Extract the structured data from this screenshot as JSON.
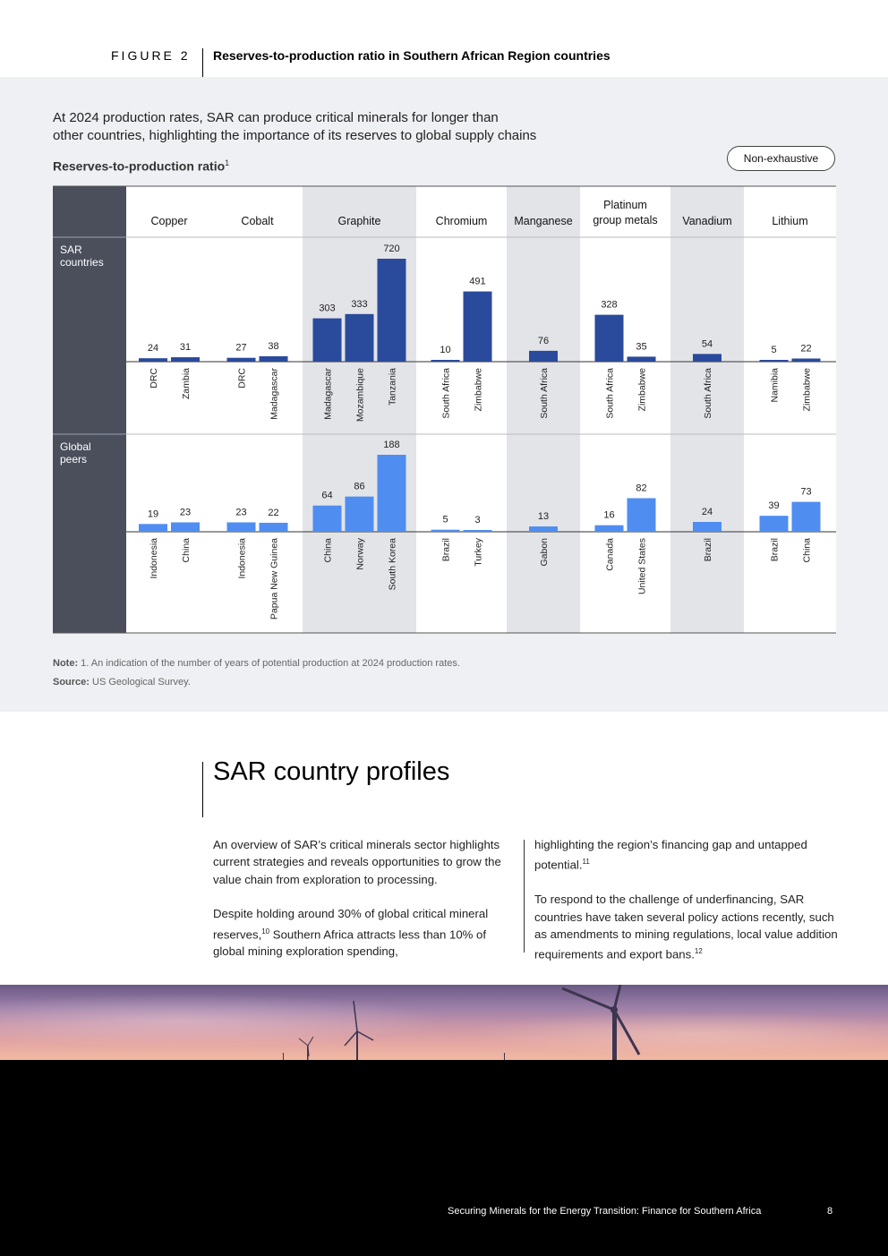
{
  "figure": {
    "label": "FIGURE 2",
    "title": "Reserves-to-production ratio in Southern African Region countries",
    "subtitle_line1": "At 2024 production rates, SAR can produce critical minerals for longer than",
    "subtitle_line2": "other countries, highlighting the importance of its reserves to global supply chains",
    "chart_label": "Reserves-to-production ratio",
    "chart_label_sup": "1",
    "badge": "Non-exhaustive"
  },
  "chart_data": {
    "type": "bar",
    "title": "Reserves-to-production ratio",
    "row_labels": [
      [
        "SAR",
        "countries"
      ],
      [
        "Global",
        "peers"
      ]
    ],
    "minerals": [
      {
        "name": [
          "Copper"
        ],
        "shaded": false,
        "sar": [
          {
            "country": "DRC",
            "value": 24
          },
          {
            "country": "Zambia",
            "value": 31
          }
        ],
        "global": [
          {
            "country": "Indonesia",
            "value": 19
          },
          {
            "country": "China",
            "value": 23
          }
        ]
      },
      {
        "name": [
          "Cobalt"
        ],
        "shaded": false,
        "sar": [
          {
            "country": "DRC",
            "value": 27
          },
          {
            "country": "Madagascar",
            "value": 38
          }
        ],
        "global": [
          {
            "country": "Indonesia",
            "value": 23
          },
          {
            "country": "Papua New Guinea",
            "value": 22
          }
        ]
      },
      {
        "name": [
          "Graphite"
        ],
        "shaded": true,
        "sar": [
          {
            "country": "Madagascar",
            "value": 303
          },
          {
            "country": "Mozambique",
            "value": 333
          },
          {
            "country": "Tanzania",
            "value": 720
          }
        ],
        "global": [
          {
            "country": "China",
            "value": 64
          },
          {
            "country": "Norway",
            "value": 86
          },
          {
            "country": "South Korea",
            "value": 188
          }
        ]
      },
      {
        "name": [
          "Chromium"
        ],
        "shaded": false,
        "sar": [
          {
            "country": "South Africa",
            "value": 10
          },
          {
            "country": "Zimbabwe",
            "value": 491
          }
        ],
        "global": [
          {
            "country": "Brazil",
            "value": 5
          },
          {
            "country": "Turkey",
            "value": 3
          }
        ]
      },
      {
        "name": [
          "Manganese"
        ],
        "shaded": true,
        "sar": [
          {
            "country": "South Africa",
            "value": 76
          }
        ],
        "global": [
          {
            "country": "Gabon",
            "value": 13
          }
        ]
      },
      {
        "name": [
          "Platinum",
          "group metals"
        ],
        "shaded": false,
        "sar": [
          {
            "country": "South Africa",
            "value": 328
          },
          {
            "country": "Zimbabwe",
            "value": 35
          }
        ],
        "global": [
          {
            "country": "Canada",
            "value": 16
          },
          {
            "country": "United States",
            "value": 82
          }
        ]
      },
      {
        "name": [
          "Vanadium"
        ],
        "shaded": true,
        "sar": [
          {
            "country": "South Africa",
            "value": 54
          }
        ],
        "global": [
          {
            "country": "Brazil",
            "value": 24
          }
        ]
      },
      {
        "name": [
          "Lithium"
        ],
        "shaded": false,
        "sar": [
          {
            "country": "Namibia",
            "value": 5
          },
          {
            "country": "Zimbabwe",
            "value": 22
          }
        ],
        "global": [
          {
            "country": "Brazil",
            "value": 39
          },
          {
            "country": "China",
            "value": 73
          }
        ]
      }
    ],
    "colors": {
      "sar": "#2a4a9b",
      "global": "#4f8ef0",
      "row_label_bg": "#4b4f5c",
      "shade": "#e3e4e8"
    }
  },
  "notes": {
    "note_label": "Note:",
    "note_text": "1. An indication of the number of years of potential production at 2024 production rates.",
    "source_label": "Source:",
    "source_text": "US Geological Survey."
  },
  "section": {
    "title": "SAR country profiles",
    "left_p1": "An overview of SAR’s critical minerals sector highlights current strategies and reveals opportunities to grow the value chain from exploration to processing.",
    "left_p2a": "Despite holding around 30% of global critical mineral reserves,",
    "left_p2_sup": "10",
    "left_p2b": " Southern Africa attracts less than 10% of global mining exploration spending,",
    "right_p1a": "highlighting the region’s financing gap and untapped potential.",
    "right_p1_sup": "11",
    "right_p2a": "To respond to the challenge of underfinancing, SAR countries have taken several policy actions recently, such as amendments to mining regulations, local value addition requirements and export bans.",
    "right_p2_sup": "12"
  },
  "footer": {
    "title_bold": "Securing Minerals for the Energy Transition:",
    "title_rest": " Finance for Southern Africa",
    "page": "8"
  }
}
